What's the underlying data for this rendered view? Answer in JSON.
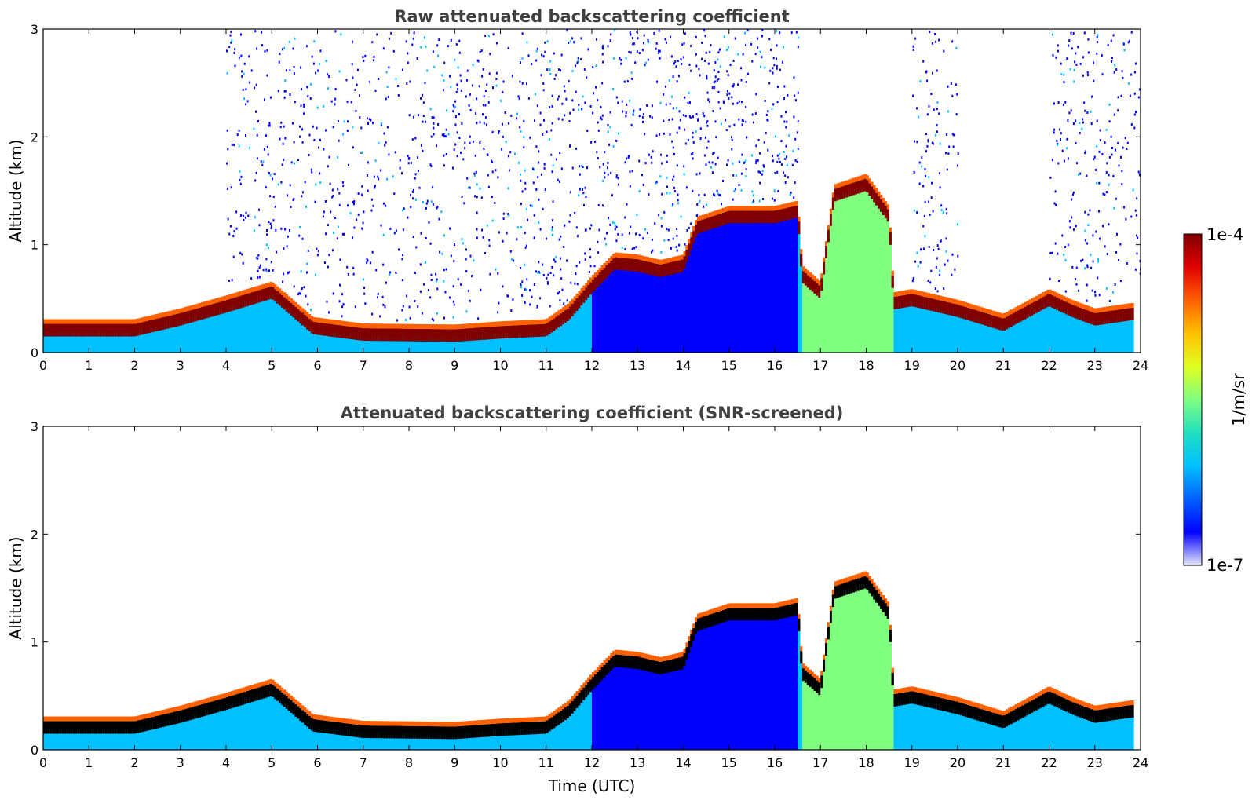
{
  "colors": {
    "jet": [
      "#e6e6fa",
      "#0000ff",
      "#0060ff",
      "#00c0ff",
      "#20e0c0",
      "#80ff80",
      "#e0ff20",
      "#ffc000",
      "#ff6000",
      "#e00000",
      "#800000"
    ],
    "screened_peak": "#000000"
  },
  "chart_data": [
    {
      "type": "heatmap",
      "title": "Raw attenuated backscattering coefficient",
      "ylabel": "Altitude (km)",
      "xlabel": "",
      "xlim": [
        0,
        24
      ],
      "ylim": [
        0,
        3
      ],
      "x_ticks": [
        "0",
        "1",
        "2",
        "3",
        "4",
        "5",
        "6",
        "7",
        "8",
        "9",
        "10",
        "11",
        "12",
        "13",
        "14",
        "15",
        "16",
        "17",
        "18",
        "19",
        "20",
        "21",
        "22",
        "23",
        "24"
      ],
      "y_ticks": [
        "0",
        "1",
        "2",
        "3"
      ],
      "cloud_base_km": [
        [
          0,
          0.2
        ],
        [
          2,
          0.2
        ],
        [
          3,
          0.3
        ],
        [
          4,
          0.42
        ],
        [
          5,
          0.55
        ],
        [
          5.9,
          0.22
        ],
        [
          7,
          0.16
        ],
        [
          9,
          0.15
        ],
        [
          10,
          0.18
        ],
        [
          11,
          0.2
        ],
        [
          11.5,
          0.35
        ],
        [
          12,
          0.6
        ],
        [
          12.5,
          0.82
        ],
        [
          13,
          0.8
        ],
        [
          13.5,
          0.75
        ],
        [
          14,
          0.8
        ],
        [
          14.3,
          1.15
        ],
        [
          15,
          1.25
        ],
        [
          16,
          1.25
        ],
        [
          16.5,
          1.3
        ],
        [
          16.6,
          0.7
        ],
        [
          17,
          0.55
        ],
        [
          17.3,
          1.45
        ],
        [
          18,
          1.55
        ],
        [
          18.5,
          1.25
        ],
        [
          18.6,
          0.45
        ],
        [
          19,
          0.48
        ],
        [
          20,
          0.38
        ],
        [
          21,
          0.25
        ],
        [
          22,
          0.48
        ],
        [
          22.5,
          0.38
        ],
        [
          23,
          0.3
        ],
        [
          23.8,
          0.35
        ]
      ],
      "noise_ranges_utc": [
        [
          4,
          12
        ],
        [
          12,
          16.5
        ],
        [
          19,
          20
        ],
        [
          22,
          24
        ]
      ]
    },
    {
      "type": "heatmap",
      "title": "Attenuated backscattering coefficient (SNR-screened)",
      "ylabel": "Altitude (km)",
      "xlabel": "Time (UTC)",
      "xlim": [
        0,
        24
      ],
      "ylim": [
        0,
        3
      ],
      "x_ticks": [
        "0",
        "1",
        "2",
        "3",
        "4",
        "5",
        "6",
        "7",
        "8",
        "9",
        "10",
        "11",
        "12",
        "13",
        "14",
        "15",
        "16",
        "17",
        "18",
        "19",
        "20",
        "21",
        "22",
        "23",
        "24"
      ],
      "y_ticks": [
        "0",
        "1",
        "2",
        "3"
      ],
      "cloud_base_km": [
        [
          0,
          0.2
        ],
        [
          2,
          0.2
        ],
        [
          3,
          0.3
        ],
        [
          4,
          0.42
        ],
        [
          5,
          0.55
        ],
        [
          5.9,
          0.22
        ],
        [
          7,
          0.16
        ],
        [
          9,
          0.15
        ],
        [
          10,
          0.18
        ],
        [
          11,
          0.2
        ],
        [
          11.5,
          0.35
        ],
        [
          12,
          0.6
        ],
        [
          12.5,
          0.82
        ],
        [
          13,
          0.8
        ],
        [
          13.5,
          0.75
        ],
        [
          14,
          0.8
        ],
        [
          14.3,
          1.15
        ],
        [
          15,
          1.25
        ],
        [
          16,
          1.25
        ],
        [
          16.5,
          1.3
        ],
        [
          16.6,
          0.7
        ],
        [
          17,
          0.55
        ],
        [
          17.3,
          1.45
        ],
        [
          18,
          1.55
        ],
        [
          18.5,
          1.25
        ],
        [
          18.6,
          0.45
        ],
        [
          19,
          0.48
        ],
        [
          20,
          0.38
        ],
        [
          21,
          0.25
        ],
        [
          22,
          0.48
        ],
        [
          22.5,
          0.38
        ],
        [
          23,
          0.3
        ],
        [
          23.8,
          0.35
        ]
      ],
      "noise_ranges_utc": []
    }
  ],
  "colorbar": {
    "label": "1/m/sr",
    "max_label": "1e-4",
    "min_label": "1e-7",
    "range": [
      1e-07,
      0.0001
    ],
    "scale": "log"
  }
}
